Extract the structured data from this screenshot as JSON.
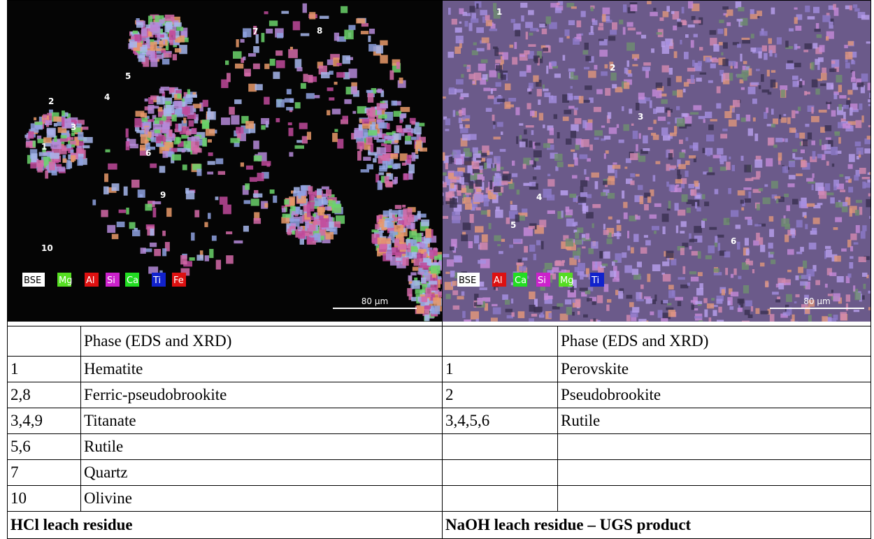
{
  "panels": [
    {
      "image": {
        "point_labels": [
          "1",
          "2",
          "3",
          "4",
          "5",
          "6",
          "7",
          "8",
          "9",
          "10"
        ],
        "legend": [
          "BSE",
          "Mg",
          "Al",
          "Si",
          "Ca",
          "Ti",
          "Fe"
        ],
        "scale_bar": "80 µm"
      },
      "table": {
        "header": "Phase (EDS and XRD)",
        "rows": [
          [
            "1",
            "Hematite"
          ],
          [
            "2,8",
            "Ferric-pseudobrookite"
          ],
          [
            "3,4,9",
            "Titanate"
          ],
          [
            "5,6",
            "Rutile"
          ],
          [
            "7",
            "Quartz"
          ],
          [
            "10",
            "Olivine"
          ]
        ],
        "caption": "HCl leach residue"
      }
    },
    {
      "image": {
        "point_labels": [
          "1",
          "2",
          "3",
          "4",
          "5",
          "6"
        ],
        "legend": [
          "BSE",
          "Al",
          "Ca",
          "Si",
          "Mg",
          "Ti"
        ],
        "scale_bar": "80 µm"
      },
      "table": {
        "header": "Phase (EDS and XRD)",
        "rows": [
          [
            "1",
            "Perovskite"
          ],
          [
            "2",
            "Pseudobrookite"
          ],
          [
            "3,4,5,6",
            "Rutile"
          ]
        ],
        "caption": "NaOH leach residue – UGS product"
      }
    }
  ]
}
